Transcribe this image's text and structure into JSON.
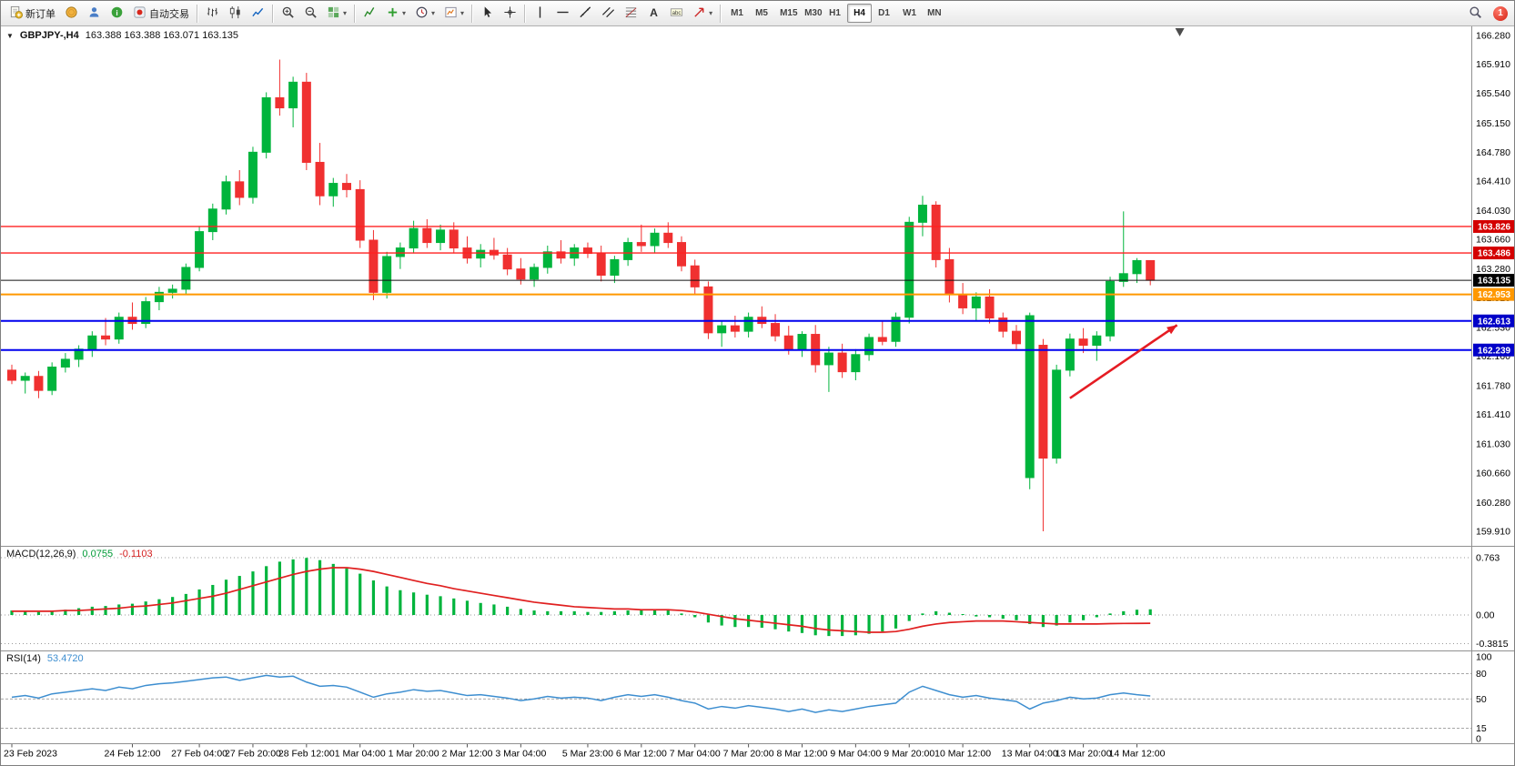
{
  "window": {
    "badge_count": "1"
  },
  "toolbar": {
    "buttons": [
      {
        "name": "new-order",
        "icon": "doc",
        "label": "新订单"
      },
      {
        "name": "mql5-market",
        "icon": "coin"
      },
      {
        "name": "community",
        "icon": "person"
      },
      {
        "name": "help",
        "icon": "info"
      },
      {
        "name": "auto-trading",
        "icon": "autotrade",
        "label": "自动交易"
      },
      {
        "sep": true
      },
      {
        "name": "bar-chart-mode",
        "icon": "bars"
      },
      {
        "name": "candlestick-mode",
        "icon": "candles"
      },
      {
        "name": "line-chart-mode",
        "icon": "linechart"
      },
      {
        "sep": true
      },
      {
        "name": "zoom-in",
        "icon": "zoomin"
      },
      {
        "name": "zoom-out",
        "icon": "zoomout"
      },
      {
        "name": "tile-windows",
        "icon": "grid",
        "caret": true
      },
      {
        "sep": true
      },
      {
        "name": "indicators-list",
        "icon": "findicator"
      },
      {
        "name": "add-indicator",
        "icon": "plus",
        "caret": true
      },
      {
        "name": "periods",
        "icon": "clock",
        "caret": true
      },
      {
        "name": "templates",
        "icon": "template",
        "caret": true
      },
      {
        "sep": true
      },
      {
        "name": "cursor-tool",
        "icon": "cursor"
      },
      {
        "name": "crosshair-tool",
        "icon": "crosshair"
      },
      {
        "sep": true
      },
      {
        "name": "vertical-line-tool",
        "icon": "vline"
      },
      {
        "name": "horizontal-line-tool",
        "icon": "hline"
      },
      {
        "name": "trendline-tool",
        "icon": "tline"
      },
      {
        "name": "channel-tool",
        "icon": "channel"
      },
      {
        "name": "fibonacci-tool",
        "icon": "fibo"
      },
      {
        "name": "text-tool",
        "icon": "textA"
      },
      {
        "name": "label-tool",
        "icon": "label"
      },
      {
        "name": "arrows-tool",
        "icon": "arrowtool",
        "caret": true
      },
      {
        "sep": true
      }
    ],
    "timeframes": [
      "M1",
      "M5",
      "M15",
      "M30",
      "H1",
      "H4",
      "D1",
      "W1",
      "MN"
    ],
    "active_timeframe": "H4",
    "right": [
      {
        "name": "search",
        "icon": "searchm"
      },
      {
        "name": "notifications",
        "icon": "badge"
      }
    ]
  },
  "chart": {
    "menu_icon": "▼",
    "symbol": "GBPJPY-,H4",
    "ohlc_text": "163.388 163.388 163.071 163.135"
  },
  "macd_label": {
    "name": "MACD(12,26,9)",
    "value": "0.0755",
    "signal": "-0.1103"
  },
  "rsi_label": {
    "name": "RSI(14)",
    "value": "53.4720"
  },
  "chart_data": {
    "type": "candlestick",
    "symbol": "GBPJPY-",
    "timeframe": "H4",
    "ylim": [
      159.91,
      166.28
    ],
    "y_axis_labels": [
      "166.280",
      "165.910",
      "165.540",
      "165.150",
      "164.780",
      "164.410",
      "164.030",
      "163.660",
      "163.280",
      "162.910",
      "162.530",
      "162.160",
      "161.780",
      "161.410",
      "161.030",
      "160.660",
      "160.280",
      "159.910"
    ],
    "up_color": "#00b43c",
    "down_color": "#f03030",
    "candles": [
      [
        161.98,
        162.05,
        161.8,
        161.85
      ],
      [
        161.85,
        161.95,
        161.68,
        161.9
      ],
      [
        161.9,
        161.97,
        161.62,
        161.72
      ],
      [
        161.72,
        162.08,
        161.66,
        162.02
      ],
      [
        162.02,
        162.2,
        161.95,
        162.12
      ],
      [
        162.12,
        162.3,
        162.02,
        162.25
      ],
      [
        162.25,
        162.48,
        162.15,
        162.42
      ],
      [
        162.42,
        162.65,
        162.3,
        162.38
      ],
      [
        162.38,
        162.72,
        162.32,
        162.66
      ],
      [
        162.66,
        162.85,
        162.5,
        162.58
      ],
      [
        162.58,
        162.92,
        162.52,
        162.86
      ],
      [
        162.86,
        163.05,
        162.75,
        162.98
      ],
      [
        162.98,
        163.08,
        162.9,
        163.02
      ],
      [
        163.02,
        163.35,
        162.95,
        163.3
      ],
      [
        163.3,
        163.82,
        163.25,
        163.76
      ],
      [
        163.76,
        164.12,
        163.65,
        164.05
      ],
      [
        164.05,
        164.48,
        163.98,
        164.4
      ],
      [
        164.4,
        164.55,
        164.1,
        164.2
      ],
      [
        164.2,
        164.85,
        164.12,
        164.78
      ],
      [
        164.78,
        165.55,
        164.7,
        165.48
      ],
      [
        165.48,
        165.97,
        165.25,
        165.35
      ],
      [
        165.35,
        165.75,
        165.1,
        165.68
      ],
      [
        165.68,
        165.8,
        164.55,
        164.65
      ],
      [
        164.65,
        164.9,
        164.1,
        164.22
      ],
      [
        164.22,
        164.45,
        164.08,
        164.38
      ],
      [
        164.38,
        164.5,
        164.2,
        164.3
      ],
      [
        164.3,
        164.42,
        163.55,
        163.65
      ],
      [
        163.65,
        163.78,
        162.88,
        162.98
      ],
      [
        162.98,
        163.5,
        162.9,
        163.44
      ],
      [
        163.44,
        163.62,
        163.28,
        163.55
      ],
      [
        163.55,
        163.9,
        163.48,
        163.8
      ],
      [
        163.8,
        163.92,
        163.55,
        163.62
      ],
      [
        163.62,
        163.85,
        163.52,
        163.78
      ],
      [
        163.78,
        163.88,
        163.48,
        163.55
      ],
      [
        163.55,
        163.7,
        163.35,
        163.42
      ],
      [
        163.42,
        163.6,
        163.3,
        163.52
      ],
      [
        163.52,
        163.68,
        163.4,
        163.46
      ],
      [
        163.46,
        163.55,
        163.2,
        163.28
      ],
      [
        163.28,
        163.42,
        163.08,
        163.15
      ],
      [
        163.15,
        163.35,
        163.05,
        163.3
      ],
      [
        163.3,
        163.58,
        163.22,
        163.5
      ],
      [
        163.5,
        163.65,
        163.35,
        163.42
      ],
      [
        163.42,
        163.6,
        163.32,
        163.55
      ],
      [
        163.55,
        163.62,
        163.42,
        163.48
      ],
      [
        163.48,
        163.58,
        163.12,
        163.2
      ],
      [
        163.2,
        163.45,
        163.1,
        163.4
      ],
      [
        163.4,
        163.68,
        163.32,
        163.62
      ],
      [
        163.62,
        163.85,
        163.5,
        163.58
      ],
      [
        163.58,
        163.8,
        163.48,
        163.74
      ],
      [
        163.74,
        163.88,
        163.55,
        163.62
      ],
      [
        163.62,
        163.7,
        163.25,
        163.32
      ],
      [
        163.32,
        163.4,
        162.95,
        163.05
      ],
      [
        163.05,
        163.12,
        162.38,
        162.46
      ],
      [
        162.46,
        162.62,
        162.28,
        162.55
      ],
      [
        162.55,
        162.68,
        162.4,
        162.48
      ],
      [
        162.48,
        162.72,
        162.4,
        162.66
      ],
      [
        162.66,
        162.8,
        162.52,
        162.58
      ],
      [
        162.58,
        162.7,
        162.35,
        162.42
      ],
      [
        162.42,
        162.55,
        162.18,
        162.25
      ],
      [
        162.25,
        162.48,
        162.15,
        162.44
      ],
      [
        162.44,
        162.56,
        161.95,
        162.05
      ],
      [
        162.05,
        162.28,
        161.7,
        162.2
      ],
      [
        162.2,
        162.32,
        161.88,
        161.96
      ],
      [
        161.96,
        162.25,
        161.85,
        162.18
      ],
      [
        162.18,
        162.45,
        162.1,
        162.4
      ],
      [
        162.4,
        162.62,
        162.3,
        162.35
      ],
      [
        162.35,
        162.72,
        162.28,
        162.66
      ],
      [
        162.66,
        163.95,
        162.58,
        163.88
      ],
      [
        163.88,
        164.22,
        163.7,
        164.1
      ],
      [
        164.1,
        164.15,
        163.3,
        163.4
      ],
      [
        163.4,
        163.55,
        162.85,
        162.95
      ],
      [
        162.95,
        163.1,
        162.7,
        162.78
      ],
      [
        162.78,
        162.98,
        162.62,
        162.92
      ],
      [
        162.92,
        163.02,
        162.58,
        162.65
      ],
      [
        162.65,
        162.72,
        162.4,
        162.48
      ],
      [
        162.48,
        162.56,
        162.25,
        162.32
      ],
      [
        160.6,
        162.72,
        160.45,
        162.68
      ],
      [
        162.3,
        162.38,
        159.91,
        160.85
      ],
      [
        160.85,
        162.05,
        160.78,
        161.98
      ],
      [
        161.98,
        162.45,
        161.9,
        162.38
      ],
      [
        162.38,
        162.52,
        162.2,
        162.3
      ],
      [
        162.3,
        162.48,
        162.1,
        162.42
      ],
      [
        162.42,
        163.18,
        162.35,
        163.12
      ],
      [
        163.12,
        164.02,
        163.05,
        163.22
      ],
      [
        163.22,
        163.42,
        163.1,
        163.388
      ],
      [
        163.388,
        163.388,
        163.071,
        163.135
      ]
    ],
    "hlines": [
      {
        "price": 163.826,
        "color": "#ff2020",
        "width": 1.4,
        "tag": "163.826",
        "tag_bg": "#d40000"
      },
      {
        "price": 163.486,
        "color": "#ff2020",
        "width": 1.4,
        "tag": "163.486",
        "tag_bg": "#d40000"
      },
      {
        "price": 162.953,
        "color": "#ff9800",
        "width": 2,
        "tag": "162.953",
        "tag_bg": "#ff9800"
      },
      {
        "price": 162.613,
        "color": "#0000ee",
        "width": 2,
        "tag": "162.613",
        "tag_bg": "#0000c8"
      },
      {
        "price": 162.239,
        "color": "#0000ee",
        "width": 2,
        "tag": "162.239",
        "tag_bg": "#0000c8"
      }
    ],
    "bid": {
      "price": 163.135,
      "tag": "163.135",
      "bg": "#000000"
    },
    "arrow": {
      "i1": 79.0,
      "p1": 161.62,
      "i2": 87.0,
      "p2": 162.56,
      "color": "#e51c23"
    },
    "shift_marker_i": 87.2,
    "x_labels": [
      {
        "i": 0,
        "t": "23 Feb 2023"
      },
      {
        "i": 9,
        "t": "24 Feb 12:00"
      },
      {
        "i": 14,
        "t": "27 Feb 04:00"
      },
      {
        "i": 18,
        "t": "27 Feb 20:00"
      },
      {
        "i": 22,
        "t": "28 Feb 12:00"
      },
      {
        "i": 26,
        "t": "1 Mar 04:00"
      },
      {
        "i": 30,
        "t": "1 Mar 20:00"
      },
      {
        "i": 34,
        "t": "2 Mar 12:00"
      },
      {
        "i": 38,
        "t": "3 Mar 04:00"
      },
      {
        "i": 43,
        "t": "5 Mar 23:00"
      },
      {
        "i": 47,
        "t": "6 Mar 12:00"
      },
      {
        "i": 51,
        "t": "7 Mar 04:00"
      },
      {
        "i": 55,
        "t": "7 Mar 20:00"
      },
      {
        "i": 59,
        "t": "8 Mar 12:00"
      },
      {
        "i": 63,
        "t": "9 Mar 04:00"
      },
      {
        "i": 67,
        "t": "9 Mar 20:00"
      },
      {
        "i": 71,
        "t": "10 Mar 12:00"
      },
      {
        "i": 76,
        "t": "13 Mar 04:00"
      },
      {
        "i": 80,
        "t": "13 Mar 20:00"
      },
      {
        "i": 84,
        "t": "14 Mar 12:00"
      }
    ],
    "macd": {
      "title": "MACD(12,26,9)",
      "hist_color": "#00b43c",
      "signal_color": "#e02020",
      "axis": [
        {
          "v": 0.763,
          "label": "0.763"
        },
        {
          "v": 0,
          "label": "0.00"
        },
        {
          "v": -0.3815,
          "label": "-0.3815"
        }
      ],
      "hist": [
        0.06,
        0.05,
        0.04,
        0.05,
        0.07,
        0.09,
        0.11,
        0.12,
        0.14,
        0.15,
        0.18,
        0.21,
        0.24,
        0.28,
        0.34,
        0.4,
        0.47,
        0.52,
        0.58,
        0.65,
        0.71,
        0.74,
        0.76,
        0.73,
        0.68,
        0.62,
        0.55,
        0.46,
        0.38,
        0.33,
        0.3,
        0.27,
        0.25,
        0.22,
        0.19,
        0.16,
        0.14,
        0.11,
        0.08,
        0.06,
        0.05,
        0.05,
        0.05,
        0.04,
        0.04,
        0.05,
        0.06,
        0.07,
        0.07,
        0.06,
        0.02,
        -0.03,
        -0.1,
        -0.14,
        -0.16,
        -0.16,
        -0.17,
        -0.19,
        -0.22,
        -0.24,
        -0.27,
        -0.28,
        -0.28,
        -0.27,
        -0.25,
        -0.22,
        -0.18,
        -0.08,
        0.02,
        0.05,
        0.03,
        0.0,
        -0.02,
        -0.03,
        -0.05,
        -0.07,
        -0.12,
        -0.16,
        -0.14,
        -0.1,
        -0.07,
        -0.03,
        0.02,
        0.05,
        0.07,
        0.0755
      ],
      "signal": [
        0.05,
        0.05,
        0.05,
        0.05,
        0.06,
        0.06,
        0.07,
        0.08,
        0.09,
        0.11,
        0.12,
        0.14,
        0.16,
        0.19,
        0.22,
        0.25,
        0.29,
        0.34,
        0.39,
        0.44,
        0.49,
        0.54,
        0.58,
        0.61,
        0.63,
        0.63,
        0.61,
        0.58,
        0.54,
        0.5,
        0.46,
        0.42,
        0.39,
        0.35,
        0.32,
        0.29,
        0.26,
        0.23,
        0.2,
        0.17,
        0.15,
        0.13,
        0.11,
        0.1,
        0.09,
        0.08,
        0.08,
        0.07,
        0.07,
        0.07,
        0.06,
        0.04,
        0.01,
        -0.02,
        -0.05,
        -0.07,
        -0.09,
        -0.11,
        -0.13,
        -0.15,
        -0.18,
        -0.2,
        -0.21,
        -0.22,
        -0.23,
        -0.23,
        -0.22,
        -0.19,
        -0.15,
        -0.12,
        -0.1,
        -0.09,
        -0.08,
        -0.08,
        -0.08,
        -0.09,
        -0.1,
        -0.11,
        -0.12,
        -0.12,
        -0.12,
        -0.12,
        -0.115,
        -0.113,
        -0.112,
        -0.1103
      ]
    },
    "rsi": {
      "title": "RSI(14)",
      "color": "#3d8ed0",
      "levels": [
        80,
        50,
        15
      ],
      "axis": [
        {
          "v": 100,
          "label": "100"
        },
        {
          "v": 80,
          "label": "80"
        },
        {
          "v": 50,
          "label": "50"
        },
        {
          "v": 15,
          "label": "15"
        },
        {
          "v": 0,
          "label": "0"
        }
      ],
      "values": [
        52,
        54,
        51,
        56,
        58,
        60,
        62,
        60,
        64,
        62,
        66,
        68,
        69,
        71,
        73,
        75,
        76,
        72,
        75,
        78,
        76,
        77,
        70,
        65,
        66,
        64,
        58,
        52,
        56,
        58,
        61,
        59,
        60,
        57,
        54,
        55,
        53,
        51,
        48,
        50,
        53,
        51,
        52,
        51,
        48,
        52,
        55,
        53,
        55,
        52,
        48,
        45,
        38,
        41,
        39,
        42,
        40,
        38,
        35,
        38,
        34,
        37,
        35,
        38,
        41,
        43,
        45,
        58,
        65,
        60,
        55,
        52,
        54,
        51,
        49,
        47,
        38,
        45,
        48,
        52,
        50,
        51,
        55,
        57,
        55,
        53.47
      ]
    }
  }
}
